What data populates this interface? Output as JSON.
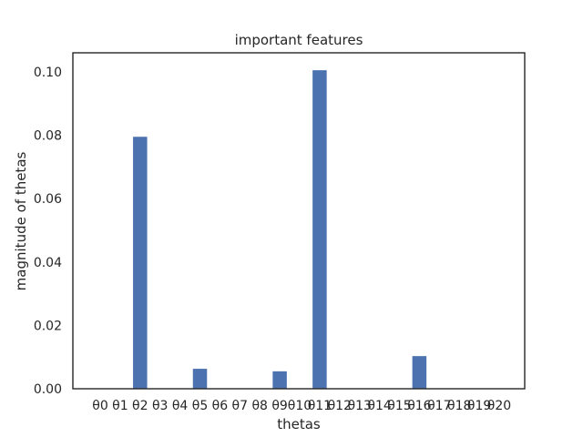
{
  "chart_data": {
    "type": "bar",
    "title": "important features",
    "xlabel": "thetas",
    "ylabel": "magnitude of thetas",
    "categories": [
      "θ0",
      "θ1",
      "θ2",
      "θ3",
      "θ4",
      "θ5",
      "θ6",
      "θ7",
      "θ8",
      "θ9",
      "θ10",
      "θ11",
      "θ12",
      "θ13",
      "θ14",
      "θ15",
      "θ16",
      "θ17",
      "θ18",
      "θ19",
      "θ20"
    ],
    "values": [
      0,
      0,
      0.0795,
      0,
      0,
      0.0063,
      0,
      0,
      0,
      0.0055,
      0,
      0.1005,
      0,
      0,
      0,
      0,
      0.0103,
      0,
      0,
      0,
      0
    ],
    "ylim": [
      0,
      0.106
    ],
    "yticks": [
      0.0,
      0.02,
      0.04,
      0.06,
      0.08,
      0.1
    ],
    "ytick_labels": [
      "0.00",
      "0.02",
      "0.04",
      "0.06",
      "0.08",
      "0.10"
    ],
    "grid": false,
    "bar_color": "#4c72b0",
    "axis_color": "#262626"
  }
}
